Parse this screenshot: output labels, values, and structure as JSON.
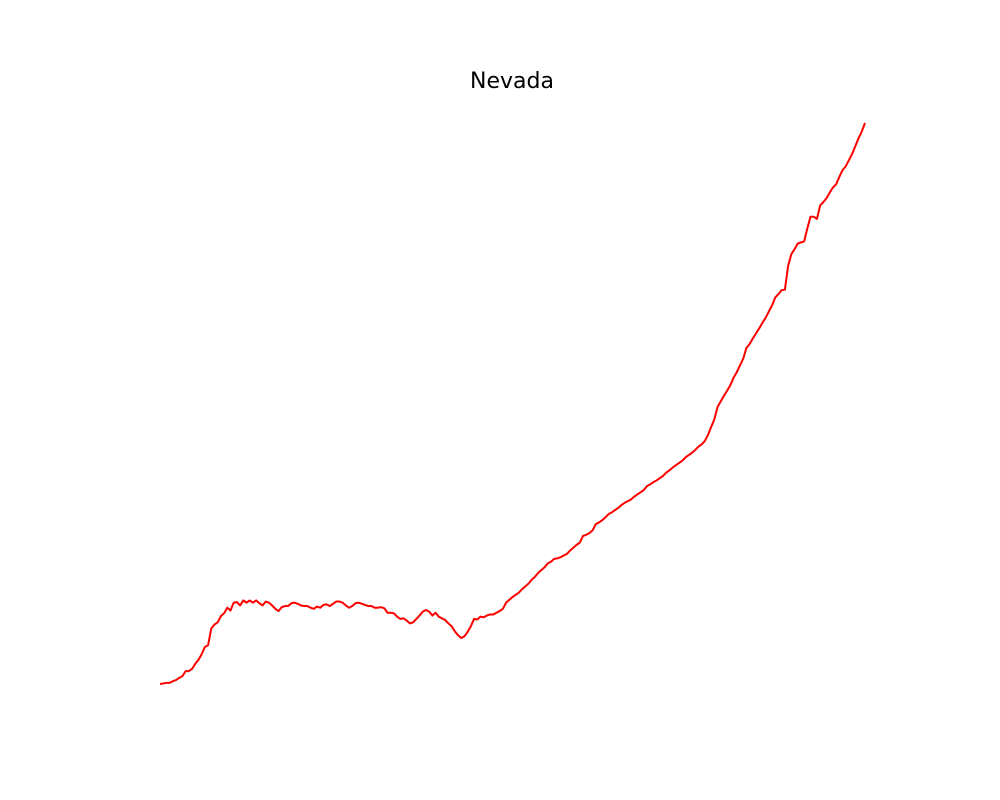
{
  "chart_data": {
    "type": "line",
    "title": "Nevada",
    "xlabel": "",
    "ylabel": "",
    "axes_visible": false,
    "grid": false,
    "legend": "none",
    "series": [
      {
        "color": "#ff0000",
        "values": [
          0,
          0.1,
          0.2,
          0.2,
          0.5,
          0.7,
          1.1,
          1.4,
          2.3,
          2.3,
          2.7,
          3.6,
          4.3,
          5.3,
          6.6,
          6.9,
          9.9,
          10.6,
          11.0,
          12.1,
          12.6,
          13.6,
          13.1,
          14.5,
          14.6,
          14.0,
          14.9,
          14.5,
          14.9,
          14.5,
          14.9,
          14.4,
          14.0,
          14.7,
          14.5,
          14.0,
          13.4,
          13.0,
          13.7,
          13.9,
          13.9,
          14.4,
          14.5,
          14.3,
          14.0,
          13.9,
          13.9,
          13.6,
          13.4,
          13.8,
          13.6,
          14.1,
          14.2,
          13.9,
          14.3,
          14.7,
          14.7,
          14.5,
          14.0,
          13.6,
          13.9,
          14.4,
          14.5,
          14.3,
          14.1,
          13.9,
          13.9,
          13.6,
          13.6,
          13.7,
          13.5,
          12.7,
          12.7,
          12.6,
          12.0,
          11.6,
          11.7,
          11.3,
          10.8,
          11.0,
          11.6,
          12.2,
          12.9,
          13.2,
          12.9,
          12.2,
          12.7,
          12.0,
          11.7,
          11.4,
          10.8,
          10.3,
          9.4,
          8.7,
          8.2,
          8.5,
          9.3,
          10.3,
          11.6,
          11.5,
          12.0,
          11.9,
          12.2,
          12.4,
          12.4,
          12.7,
          13.0,
          13.4,
          14.5,
          15.0,
          15.5,
          15.9,
          16.3,
          16.9,
          17.4,
          17.9,
          18.6,
          19.1,
          19.8,
          20.3,
          20.8,
          21.5,
          21.8,
          22.3,
          22.4,
          22.6,
          22.9,
          23.2,
          23.8,
          24.3,
          24.8,
          25.2,
          26.4,
          26.6,
          26.9,
          27.4,
          28.5,
          28.8,
          29.2,
          29.7,
          30.3,
          30.6,
          31.0,
          31.4,
          31.9,
          32.3,
          32.6,
          32.9,
          33.4,
          33.8,
          34.2,
          34.6,
          35.3,
          35.6,
          36.0,
          36.3,
          36.7,
          37.1,
          37.7,
          38.1,
          38.6,
          39.0,
          39.4,
          39.8,
          40.4,
          40.8,
          41.2,
          41.7,
          42.3,
          42.7,
          43.3,
          44.4,
          45.8,
          47.2,
          49.4,
          50.4,
          51.4,
          52.3,
          53.3,
          54.6,
          55.6,
          56.8,
          58.0,
          59.9,
          60.6,
          61.6,
          62.5,
          63.4,
          64.4,
          65.3,
          66.4,
          67.5,
          68.9,
          69.5,
          70.2,
          70.3,
          74.5,
          76.6,
          77.5,
          78.5,
          78.7,
          78.9,
          81.2,
          83.3,
          83.3,
          82.9,
          85.3,
          85.9,
          86.6,
          87.6,
          88.5,
          89.1,
          90.4,
          91.6,
          92.3,
          93.4,
          94.5,
          95.9,
          97.3,
          98.5,
          100
        ]
      }
    ]
  }
}
